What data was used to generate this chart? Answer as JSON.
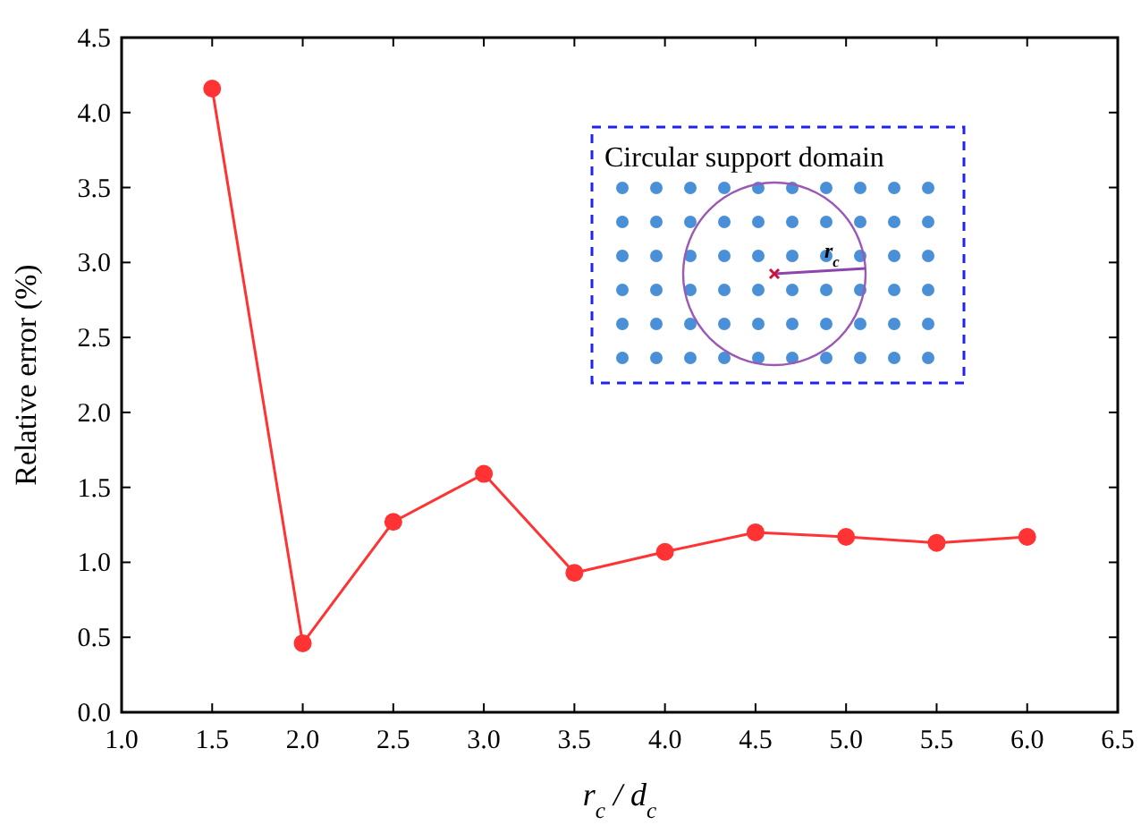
{
  "chart_data": {
    "type": "line",
    "xlabel": "r$_{c}$ / d$_{c}$",
    "ylabel": "Relative error (%)",
    "x": [
      1.5,
      2.0,
      2.5,
      3.0,
      3.5,
      4.0,
      4.5,
      5.0,
      5.5,
      6.0
    ],
    "series": [
      {
        "color": "#ff3333",
        "values": [
          4.16,
          0.46,
          1.27,
          1.59,
          0.93,
          1.07,
          1.2,
          1.17,
          1.13,
          1.17
        ]
      }
    ],
    "xlim": [
      1.0,
      6.5
    ],
    "xticks": [
      {
        "value": 1,
        "label": "1.0"
      },
      1.5,
      {
        "value": 2,
        "label": "2.0"
      },
      2.5,
      {
        "value": 3,
        "label": "3.0"
      },
      3.5,
      {
        "value": 4,
        "label": "4.0"
      },
      4.5,
      {
        "value": 5,
        "label": "5.0"
      },
      5.5,
      {
        "value": 6,
        "label": "6.0"
      },
      6.5
    ],
    "ylim": [
      0,
      4.5
    ],
    "yticks": [
      {
        "value": 0,
        "label": "0.0"
      },
      0.5,
      {
        "value": 1,
        "label": "1.0"
      },
      1.5,
      {
        "value": 2,
        "label": "2.0"
      },
      2.5,
      {
        "value": 3,
        "label": "3.0"
      },
      3.5,
      {
        "value": 4,
        "label": "4.0"
      },
      4.5
    ],
    "marker": "circle",
    "line_style": "solid",
    "grid": false,
    "annotations": [
      "Circular support domain",
      "r$_{c}$"
    ]
  }
}
